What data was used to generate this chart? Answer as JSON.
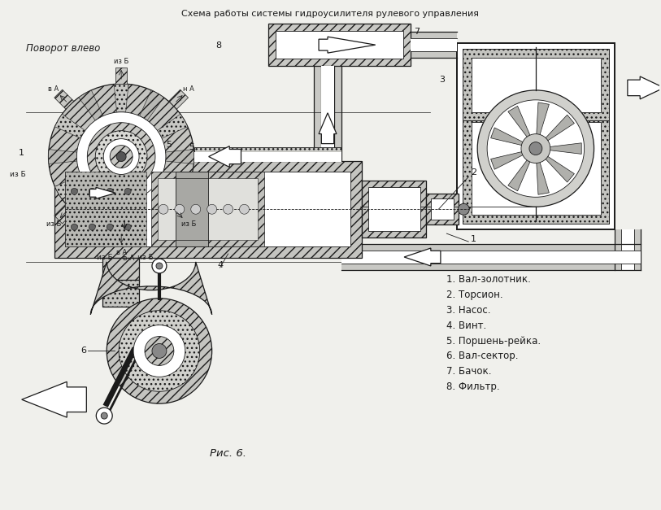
{
  "title": "Схема работы системы гидроусилителя рулевого управления",
  "subtitle": "Поворот влево",
  "caption": "Рис. 6.",
  "legend": [
    "1. Вал-золотник.",
    "2. Торсион.",
    "3. Насос.",
    "4. Винт.",
    "5. Поршень-рейка.",
    "6. Вал-сектор.",
    "7. Бачок.",
    "8. Фильтр."
  ],
  "bg_color": "#f0f0ec",
  "line_color": "#1a1a1a",
  "fill_light": "#d4d4d0",
  "fill_dot": "#b8b8b4",
  "fill_white": "#ffffff"
}
